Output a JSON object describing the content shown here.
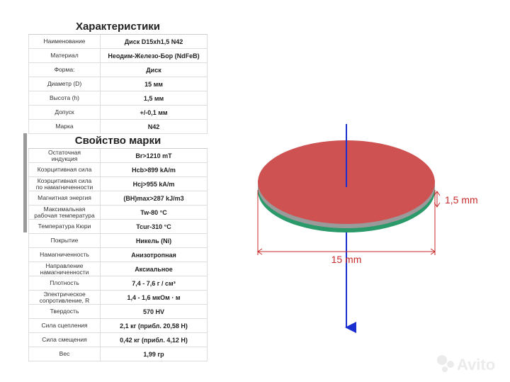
{
  "sections": [
    {
      "heading": "Характеристики",
      "rows": [
        [
          "Наименование",
          "Диск D15xh1,5 N42"
        ],
        [
          "Материал",
          "Неодим-Железо-Бор (NdFeB)"
        ],
        [
          "Форма:",
          "Диск"
        ],
        [
          "Диаметр (D)",
          "15 мм"
        ],
        [
          "Высота (h)",
          "1,5 мм"
        ],
        [
          "Допуск",
          "+/-0,1 мм"
        ],
        [
          "Марка",
          "N42"
        ]
      ]
    },
    {
      "heading": "Свойство марки",
      "rows": [
        [
          "Остаточная\nиндукция",
          "Br>1210 mT"
        ],
        [
          "Коэрцитивная сила",
          "Hcb>899 kA/m"
        ],
        [
          "Коэрцитивная сила\nпо намагниченности",
          "Hcj>955 kA/m"
        ],
        [
          "Магнитная энергия",
          "(BH)max>287 kJ/m3"
        ],
        [
          "Максимальная\nрабочая температура",
          "Tw-80 °C"
        ],
        [
          "Температура Кюри",
          "Tcur-310 °C"
        ],
        [
          "Покрытие",
          "Никель (Ni)"
        ],
        [
          "Намагниченность",
          "Анизотропная"
        ],
        [
          "Направление\nнамагниченности",
          "Аксиальное"
        ],
        [
          "Плотность",
          "7,4 - 7,6 г / см³"
        ],
        [
          "Электрическое\nсопротивление, R",
          "1,4 - 1,6 мкОм · м"
        ],
        [
          "Твердость",
          "570 HV"
        ],
        [
          "Сила сцепления",
          "2,1 кг (прибл. 20,58  H)"
        ],
        [
          "Сила смещения",
          "0,42 кг (прибл. 4,12 H)"
        ],
        [
          "Вес",
          "1,99 гр"
        ]
      ]
    }
  ],
  "diagram": {
    "height_label": "1,5 mm",
    "diameter_label": "15 mm"
  },
  "watermark": "Avito"
}
